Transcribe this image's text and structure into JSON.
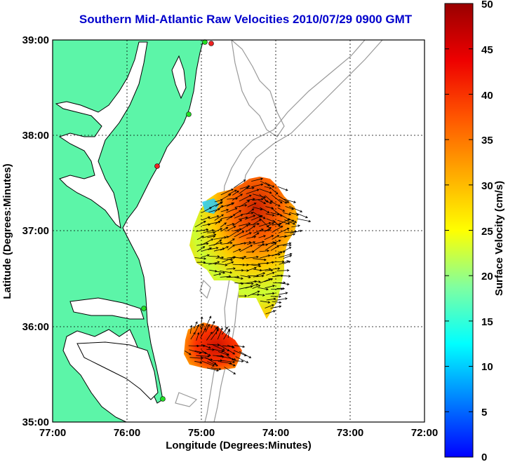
{
  "title": "Southern Mid-Atlantic Raw Velocities 2010/07/29 0900 GMT",
  "x_axis": {
    "label": "Longitude (Degrees:Minutes)",
    "ticks": [
      "77:00",
      "76:00",
      "75:00",
      "74:00",
      "73:00",
      "72:00"
    ]
  },
  "y_axis": {
    "label": "Latitude (Degrees:Minutes)",
    "ticks": [
      "39:00",
      "38:00",
      "37:00",
      "36:00",
      "35:00"
    ]
  },
  "colorbar": {
    "label": "Surface Velocity (cm/s)",
    "ticks": [
      "50",
      "45",
      "40",
      "35",
      "30",
      "25",
      "20",
      "15",
      "10",
      "5",
      "0"
    ],
    "colormap": "jet",
    "range": [
      0,
      50
    ]
  },
  "map": {
    "lon_range": [
      -77,
      -72
    ],
    "lat_range": [
      35,
      39
    ],
    "grid": true,
    "land_color": "#5cf5a8",
    "bathymetry_color": "#999999",
    "station_colors": [
      "#22dd22",
      "#ee2222"
    ]
  }
}
